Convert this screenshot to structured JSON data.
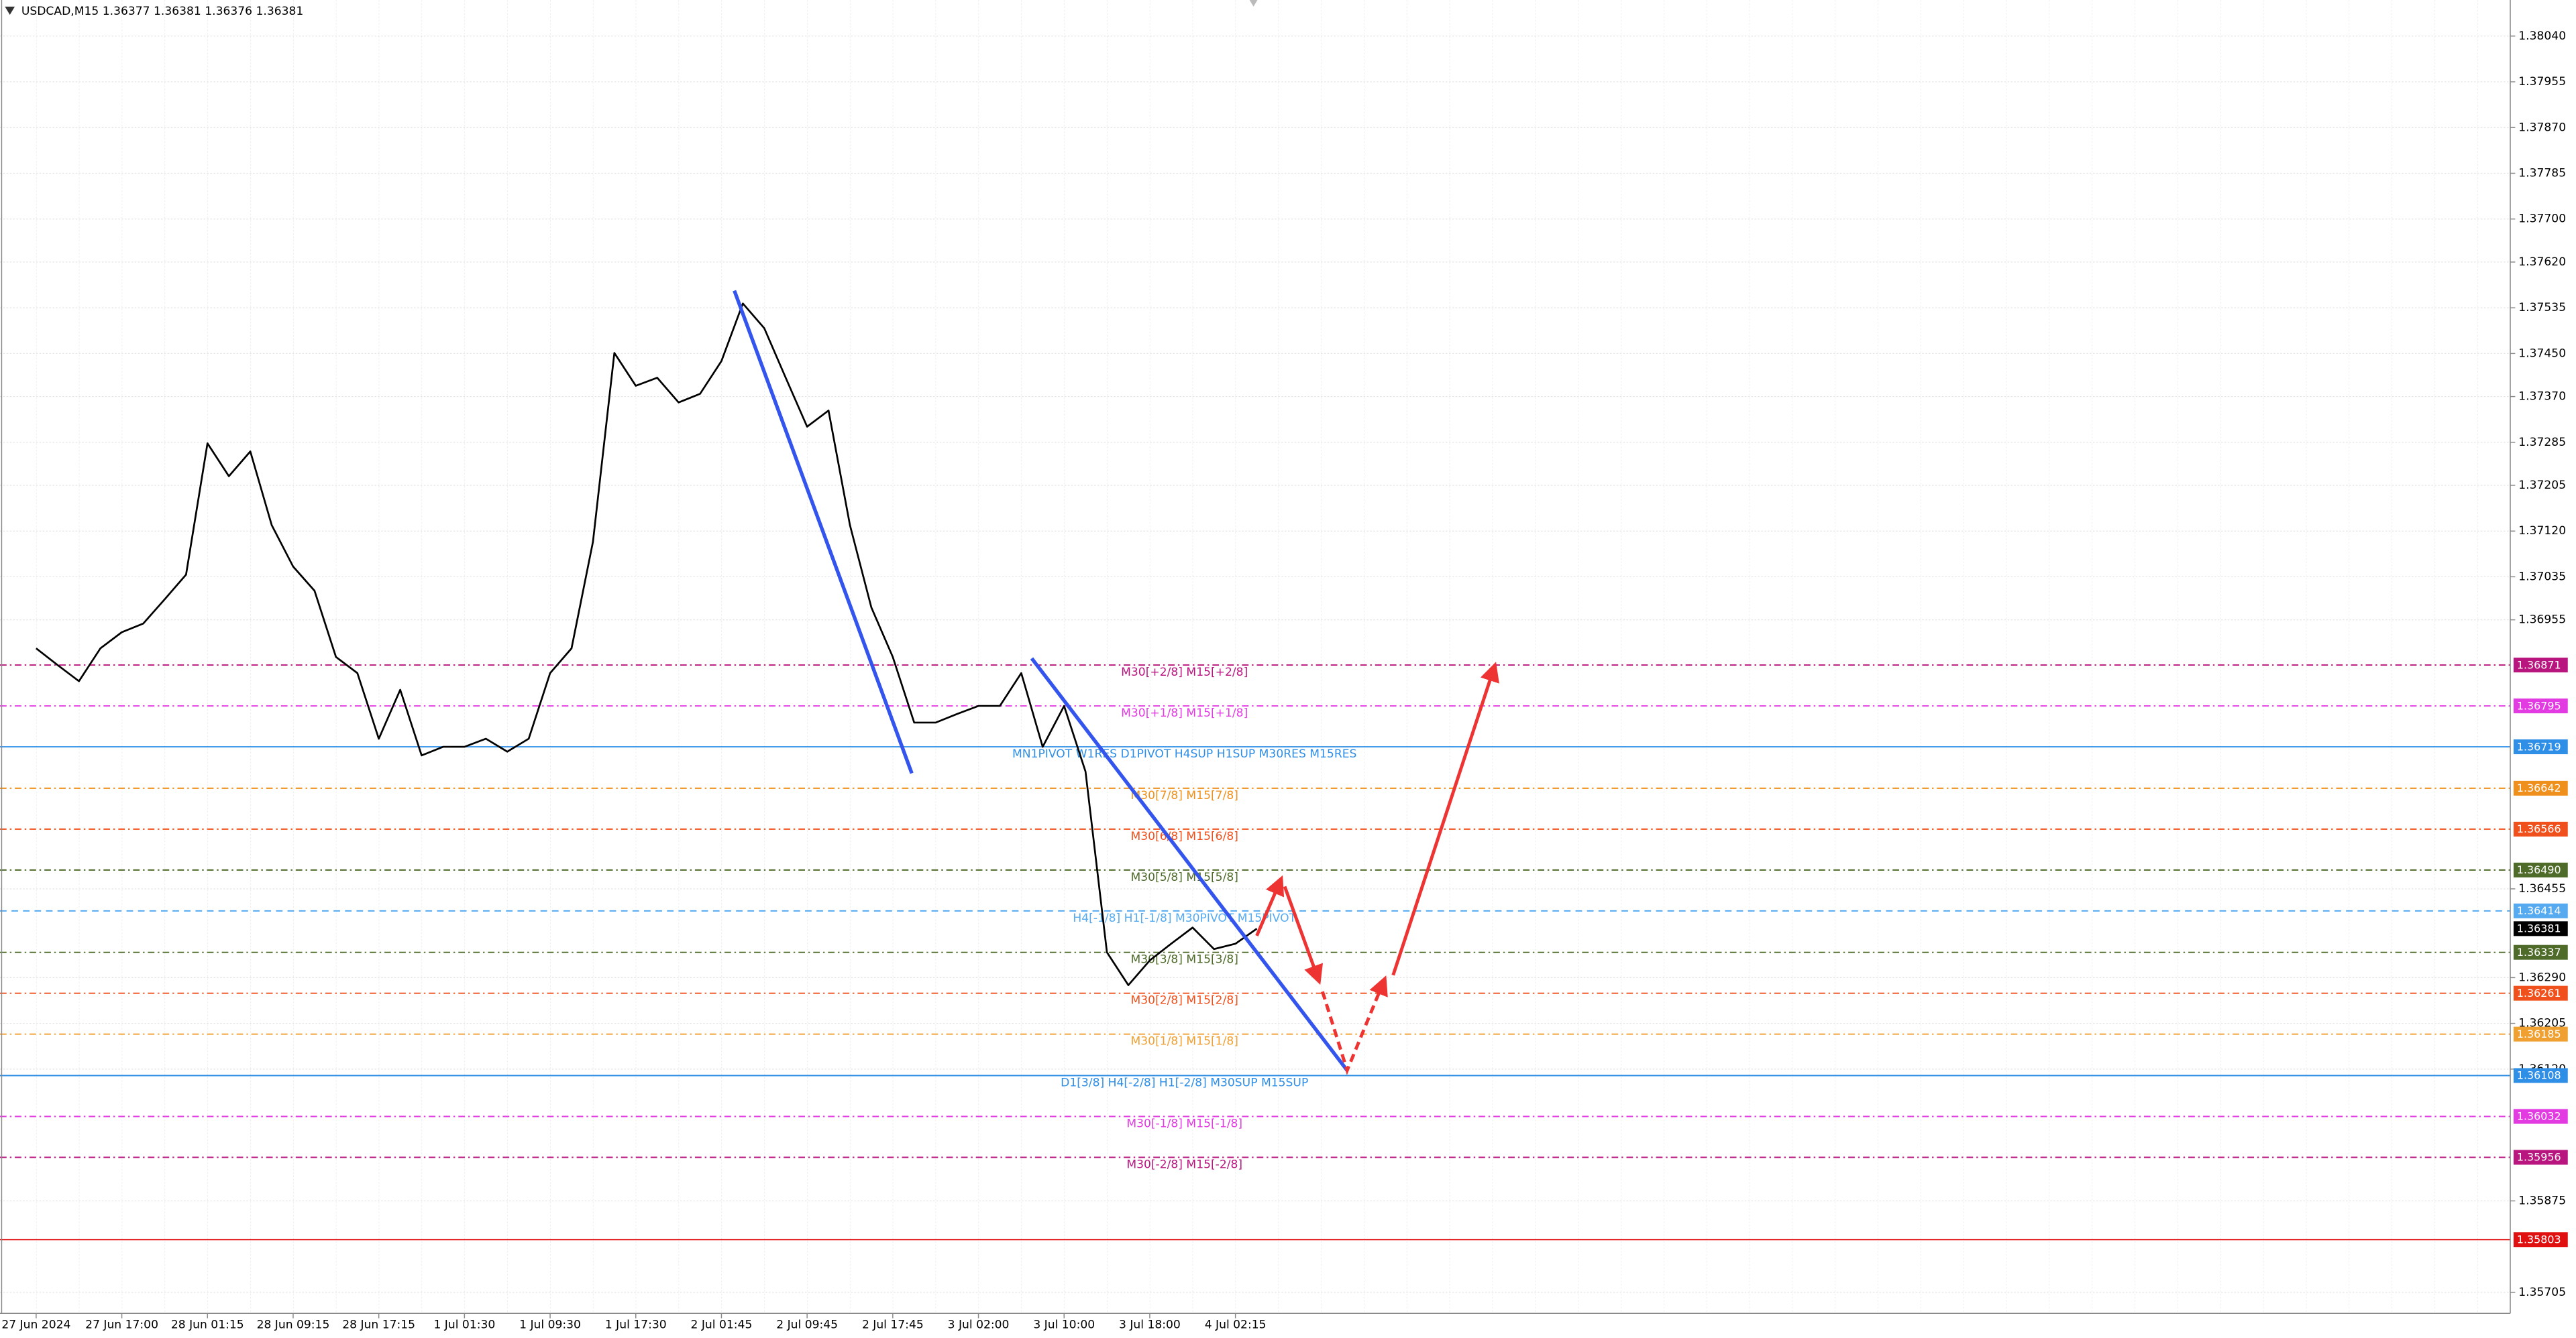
{
  "chart_data": {
    "type": "line",
    "title": "USDCAD,M15  1.36377 1.36381 1.36376 1.36381",
    "categories": [
      "27 Jun 2024",
      null,
      null,
      null,
      "27 Jun 17:00",
      null,
      null,
      null,
      "28 Jun 01:15",
      null,
      null,
      null,
      "28 Jun 09:15",
      null,
      null,
      null,
      "28 Jun 17:15",
      null,
      null,
      null,
      "1 Jul 01:30",
      null,
      null,
      null,
      "1 Jul 09:30",
      null,
      null,
      null,
      "1 Jul 17:30",
      null,
      null,
      null,
      "2 Jul 01:45",
      null,
      null,
      null,
      "2 Jul 09:45",
      null,
      null,
      null,
      "2 Jul 17:45",
      null,
      null,
      null,
      "3 Jul 02:00",
      null,
      null,
      null,
      "3 Jul 10:00",
      null,
      null,
      null,
      "3 Jul 18:00",
      null,
      null,
      null,
      "4 Jul 02:15",
      null
    ],
    "series": [
      {
        "color": "#000000",
        "values": [
          1.36902,
          1.36871,
          1.36841,
          1.36902,
          1.36932,
          1.36948,
          1.36993,
          1.37039,
          1.37283,
          1.37222,
          1.37268,
          1.37131,
          1.37054,
          1.37009,
          1.36886,
          1.36856,
          1.36734,
          1.36825,
          1.36703,
          1.36719,
          1.36719,
          1.36734,
          1.3671,
          1.36734,
          1.36856,
          1.36902,
          1.371,
          1.37451,
          1.3739,
          1.37405,
          1.37359,
          1.37375,
          1.37436,
          1.37543,
          1.37497,
          1.37405,
          1.37314,
          1.37344,
          1.37131,
          1.36978,
          1.36886,
          1.36764,
          1.36764,
          1.3678,
          1.36795,
          1.36795,
          1.36856,
          1.36719,
          1.36795,
          1.36673,
          1.36337,
          1.36276,
          1.36322,
          1.36353,
          1.36383,
          1.36343,
          1.36353,
          1.36381
        ]
      }
    ],
    "ylim": [
      1.35666,
      1.38107
    ],
    "yticks": [
      {
        "value": 1.3804,
        "label": "1.38040"
      },
      1.37955,
      {
        "value": 1.3787,
        "label": "1.37870"
      },
      1.37785,
      {
        "value": 1.377,
        "label": "1.37700"
      },
      {
        "value": 1.3762,
        "label": "1.37620"
      },
      1.37535,
      {
        "value": 1.3745,
        "label": "1.37450"
      },
      {
        "value": 1.3737,
        "label": "1.37370"
      },
      1.37285,
      1.37205,
      {
        "value": 1.3712,
        "label": "1.37120"
      },
      1.37035,
      1.36955,
      1.36455,
      {
        "value": 1.3629,
        "label": "1.36290"
      },
      1.36205,
      {
        "value": 1.3612,
        "label": "1.36120"
      },
      1.35875,
      1.35705
    ],
    "grid": true,
    "last_price": 1.36381,
    "levels": [
      {
        "name": "M30[+2/8] M15[+2/8]",
        "value": 1.36871,
        "color": "#b8157f",
        "line": "dashdot"
      },
      {
        "name": "M30[+1/8] M15[+1/8]",
        "value": 1.36795,
        "color": "#e23be2",
        "line": "dashdot"
      },
      {
        "name": "MN1PIVOT W1RES D1PIVOT H4SUP H1SUP M30RES M15RES",
        "value": 1.36719,
        "color": "#2f8fe6",
        "line": "solid"
      },
      {
        "name": "M30[7/8] M15[7/8]",
        "value": 1.36642,
        "color": "#f0901c",
        "line": "dashdot"
      },
      {
        "name": "M30[6/8] M15[6/8]",
        "value": 1.36566,
        "color": "#f0501c",
        "line": "dashdot"
      },
      {
        "name": "M30[5/8] M15[5/8]",
        "value": 1.3649,
        "value_label": "1.36490",
        "color": "#4e6b2a",
        "line": "dashdot"
      },
      {
        "name": "H4[-1/8] H1[-1/8] M30PIVOT M15PIVOT",
        "value": 1.36414,
        "color": "#55aaf0",
        "line": "dashed"
      },
      {
        "name": "M30[3/8] M15[3/8]",
        "value": 1.36337,
        "color": "#4e6b2a",
        "line": "dashdot"
      },
      {
        "name": "M30[2/8] M15[2/8]",
        "value": 1.36261,
        "color": "#f0501c",
        "line": "dashdot"
      },
      {
        "name": "M30[1/8] M15[1/8]",
        "value": 1.36185,
        "color": "#f0a030",
        "line": "dashdot"
      },
      {
        "name": "D1[3/8] H4[-2/8] H1[-2/8] M30SUP M15SUP",
        "value": 1.36108,
        "color": "#2f8fe6",
        "line": "solid"
      },
      {
        "name": "M30[-1/8] M15[-1/8]",
        "value": 1.36032,
        "color": "#e23be2",
        "line": "dashdot"
      },
      {
        "name": "M30[-2/8] M15[-2/8]",
        "value": 1.35956,
        "color": "#b8157f",
        "line": "dashdot"
      },
      {
        "value": 1.35803,
        "color": "#e01010",
        "line": "solid"
      }
    ]
  }
}
